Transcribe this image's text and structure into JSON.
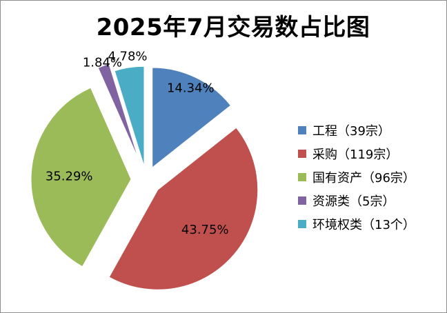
{
  "chart_data": {
    "type": "pie",
    "title": "2025年7月交易数占比图",
    "legend_position": "right",
    "slices": [
      {
        "name": "工程（39宗）",
        "value": 39,
        "label": "14.34%",
        "color": "#4f81bd"
      },
      {
        "name": "采购（119宗）",
        "value": 119,
        "label": "43.75%",
        "color": "#c0504d"
      },
      {
        "name": "国有资产（96宗）",
        "value": 96,
        "label": "35.29%",
        "color": "#9bbb59"
      },
      {
        "name": "资源类（5宗）",
        "value": 5,
        "label": "1.84%",
        "color": "#8064a2"
      },
      {
        "name": "环境权类（13个）",
        "value": 13,
        "label": "4.78%",
        "color": "#4bacc6"
      }
    ]
  }
}
